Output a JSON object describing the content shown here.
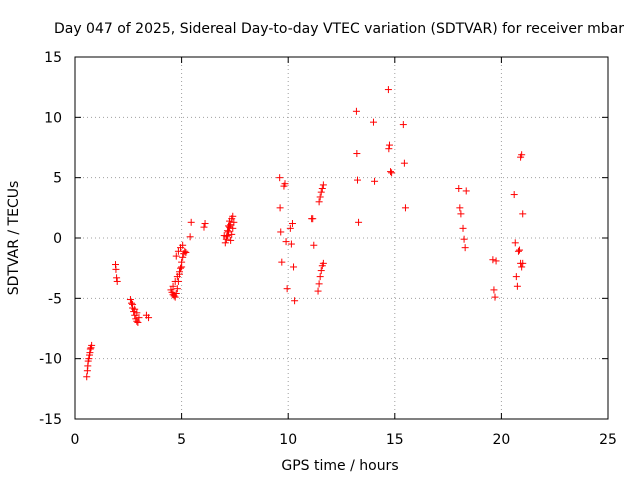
{
  "chart_data": {
    "type": "scatter",
    "title": "Day 047 of 2025, Sidereal Day-to-day VTEC variation (SDTVAR) for receiver mbar",
    "xlabel": "GPS time / hours",
    "ylabel": "SDTVAR / TECUs",
    "xlim": [
      0,
      25
    ],
    "ylim": [
      -15,
      15
    ],
    "xticks": [
      0,
      5,
      10,
      15,
      20,
      25
    ],
    "yticks": [
      -15,
      -10,
      -5,
      0,
      5,
      10,
      15
    ],
    "xtick_labels": [
      "0",
      "5",
      "10",
      "15",
      "20",
      "25"
    ],
    "ytick_labels": [
      "-15",
      "-10",
      "-5",
      "0",
      "5",
      "10",
      "15"
    ],
    "grid": true,
    "marker": "+",
    "color": "#ff0000",
    "series": [
      {
        "name": "SDTVAR",
        "x": [
          0.55,
          0.58,
          0.6,
          0.62,
          0.65,
          0.68,
          0.7,
          0.72,
          0.75,
          0.78,
          1.9,
          1.92,
          1.95,
          1.98,
          2.6,
          2.65,
          2.7,
          2.75,
          2.8,
          2.85,
          2.9,
          2.95,
          3.0,
          2.7,
          2.8,
          2.9,
          3.35,
          3.45,
          4.5,
          4.55,
          4.6,
          4.65,
          4.7,
          4.75,
          4.8,
          4.85,
          4.9,
          4.95,
          5.0,
          5.05,
          5.1,
          5.15,
          4.6,
          4.7,
          4.8,
          4.9,
          5.0,
          4.75,
          4.85,
          4.95,
          5.05,
          5.2,
          5.4,
          5.45,
          6.05,
          6.1,
          7.0,
          7.05,
          7.1,
          7.15,
          7.2,
          7.25,
          7.3,
          7.35,
          7.4,
          7.45,
          7.1,
          7.2,
          7.3,
          7.4,
          7.15,
          7.25,
          7.35,
          9.6,
          9.62,
          9.65,
          9.7,
          9.8,
          9.85,
          9.9,
          9.95,
          10.1,
          10.15,
          10.2,
          10.25,
          10.3,
          11.1,
          11.15,
          11.2,
          11.4,
          11.45,
          11.5,
          11.55,
          11.6,
          11.65,
          11.45,
          11.5,
          11.55,
          11.6,
          11.65,
          13.2,
          13.22,
          13.25,
          13.3,
          14.0,
          14.05,
          14.7,
          14.72,
          14.75,
          14.8,
          14.85,
          15.4,
          15.45,
          15.5,
          18.0,
          18.05,
          18.1,
          18.2,
          18.25,
          18.3,
          18.35,
          19.6,
          19.65,
          19.7,
          19.75,
          20.6,
          20.65,
          20.7,
          20.75,
          20.8,
          20.85,
          20.9,
          20.95,
          21.0,
          20.9,
          20.95,
          21.0
        ],
        "y": [
          -11.5,
          -11.0,
          -10.6,
          -10.2,
          -10.0,
          -9.7,
          -9.5,
          -9.2,
          -9.1,
          -8.9,
          -2.2,
          -2.6,
          -3.3,
          -3.6,
          -5.1,
          -5.4,
          -5.8,
          -6.1,
          -6.4,
          -6.7,
          -6.9,
          -7.0,
          -6.6,
          -5.5,
          -5.9,
          -6.2,
          -6.4,
          -6.6,
          -4.3,
          -4.5,
          -4.7,
          -4.8,
          -4.9,
          -4.6,
          -4.2,
          -3.6,
          -3.0,
          -2.5,
          -2.0,
          -1.6,
          -1.3,
          -1.1,
          -4.0,
          -3.6,
          -3.2,
          -2.8,
          -2.4,
          -1.5,
          -1.1,
          -0.8,
          -0.6,
          -1.2,
          0.1,
          1.3,
          0.9,
          1.2,
          0.2,
          -0.4,
          0.1,
          0.6,
          1.0,
          1.4,
          -0.2,
          0.3,
          0.8,
          1.3,
          -0.1,
          0.5,
          1.1,
          1.8,
          0.2,
          0.9,
          1.6,
          5.0,
          2.5,
          0.5,
          -2.0,
          4.3,
          4.5,
          -0.3,
          -4.2,
          0.8,
          -0.5,
          1.2,
          -2.4,
          -5.2,
          1.6,
          1.6,
          -0.6,
          -4.4,
          -3.8,
          -3.2,
          -2.7,
          -2.3,
          -2.1,
          3.0,
          3.4,
          3.8,
          4.1,
          4.4,
          10.5,
          7.0,
          4.8,
          1.3,
          9.6,
          4.7,
          12.3,
          7.4,
          7.7,
          5.5,
          5.4,
          9.4,
          6.2,
          2.5,
          4.1,
          2.5,
          2.0,
          0.8,
          -0.1,
          -0.8,
          3.9,
          -1.8,
          -4.3,
          -4.9,
          -1.9,
          3.6,
          -0.4,
          -3.2,
          -4.0,
          -1.1,
          -1.0,
          -2.1,
          -2.4,
          -2.1,
          6.7,
          6.9,
          2.0
        ]
      }
    ]
  }
}
